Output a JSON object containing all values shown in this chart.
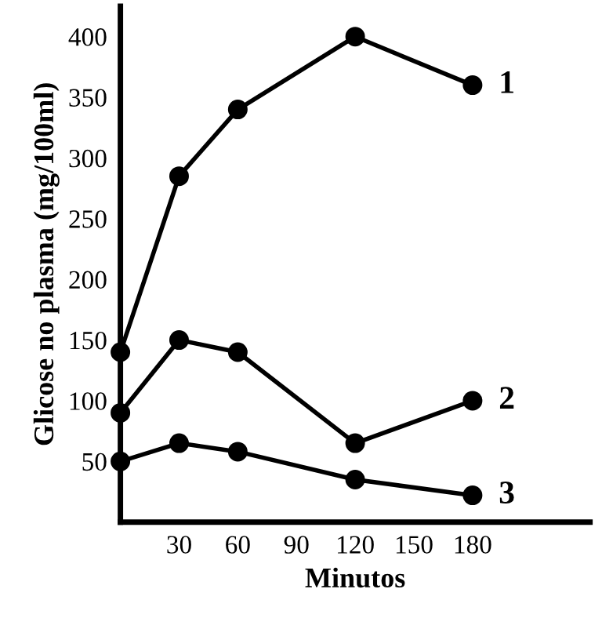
{
  "chart_data": {
    "type": "line",
    "xlabel": "Minutos",
    "ylabel": "Glicose no plasma (mg/100ml)",
    "x": [
      0,
      30,
      60,
      120,
      180
    ],
    "series": [
      {
        "name": "1",
        "color": "#000000",
        "values": [
          140,
          285,
          340,
          400,
          360
        ]
      },
      {
        "name": "2",
        "color": "#000000",
        "values": [
          90,
          150,
          140,
          65,
          100
        ]
      },
      {
        "name": "3",
        "color": "#000000",
        "values": [
          50,
          65,
          58,
          35,
          22
        ]
      }
    ],
    "xlim": [
      0,
      240
    ],
    "xticks": [
      30,
      60,
      90,
      120,
      150,
      180
    ],
    "ylim": [
      0,
      425
    ],
    "yticks": [
      50,
      100,
      150,
      200,
      250,
      300,
      350,
      400
    ],
    "marker": "circle",
    "line_style": "solid",
    "grid": false,
    "legend": false
  }
}
